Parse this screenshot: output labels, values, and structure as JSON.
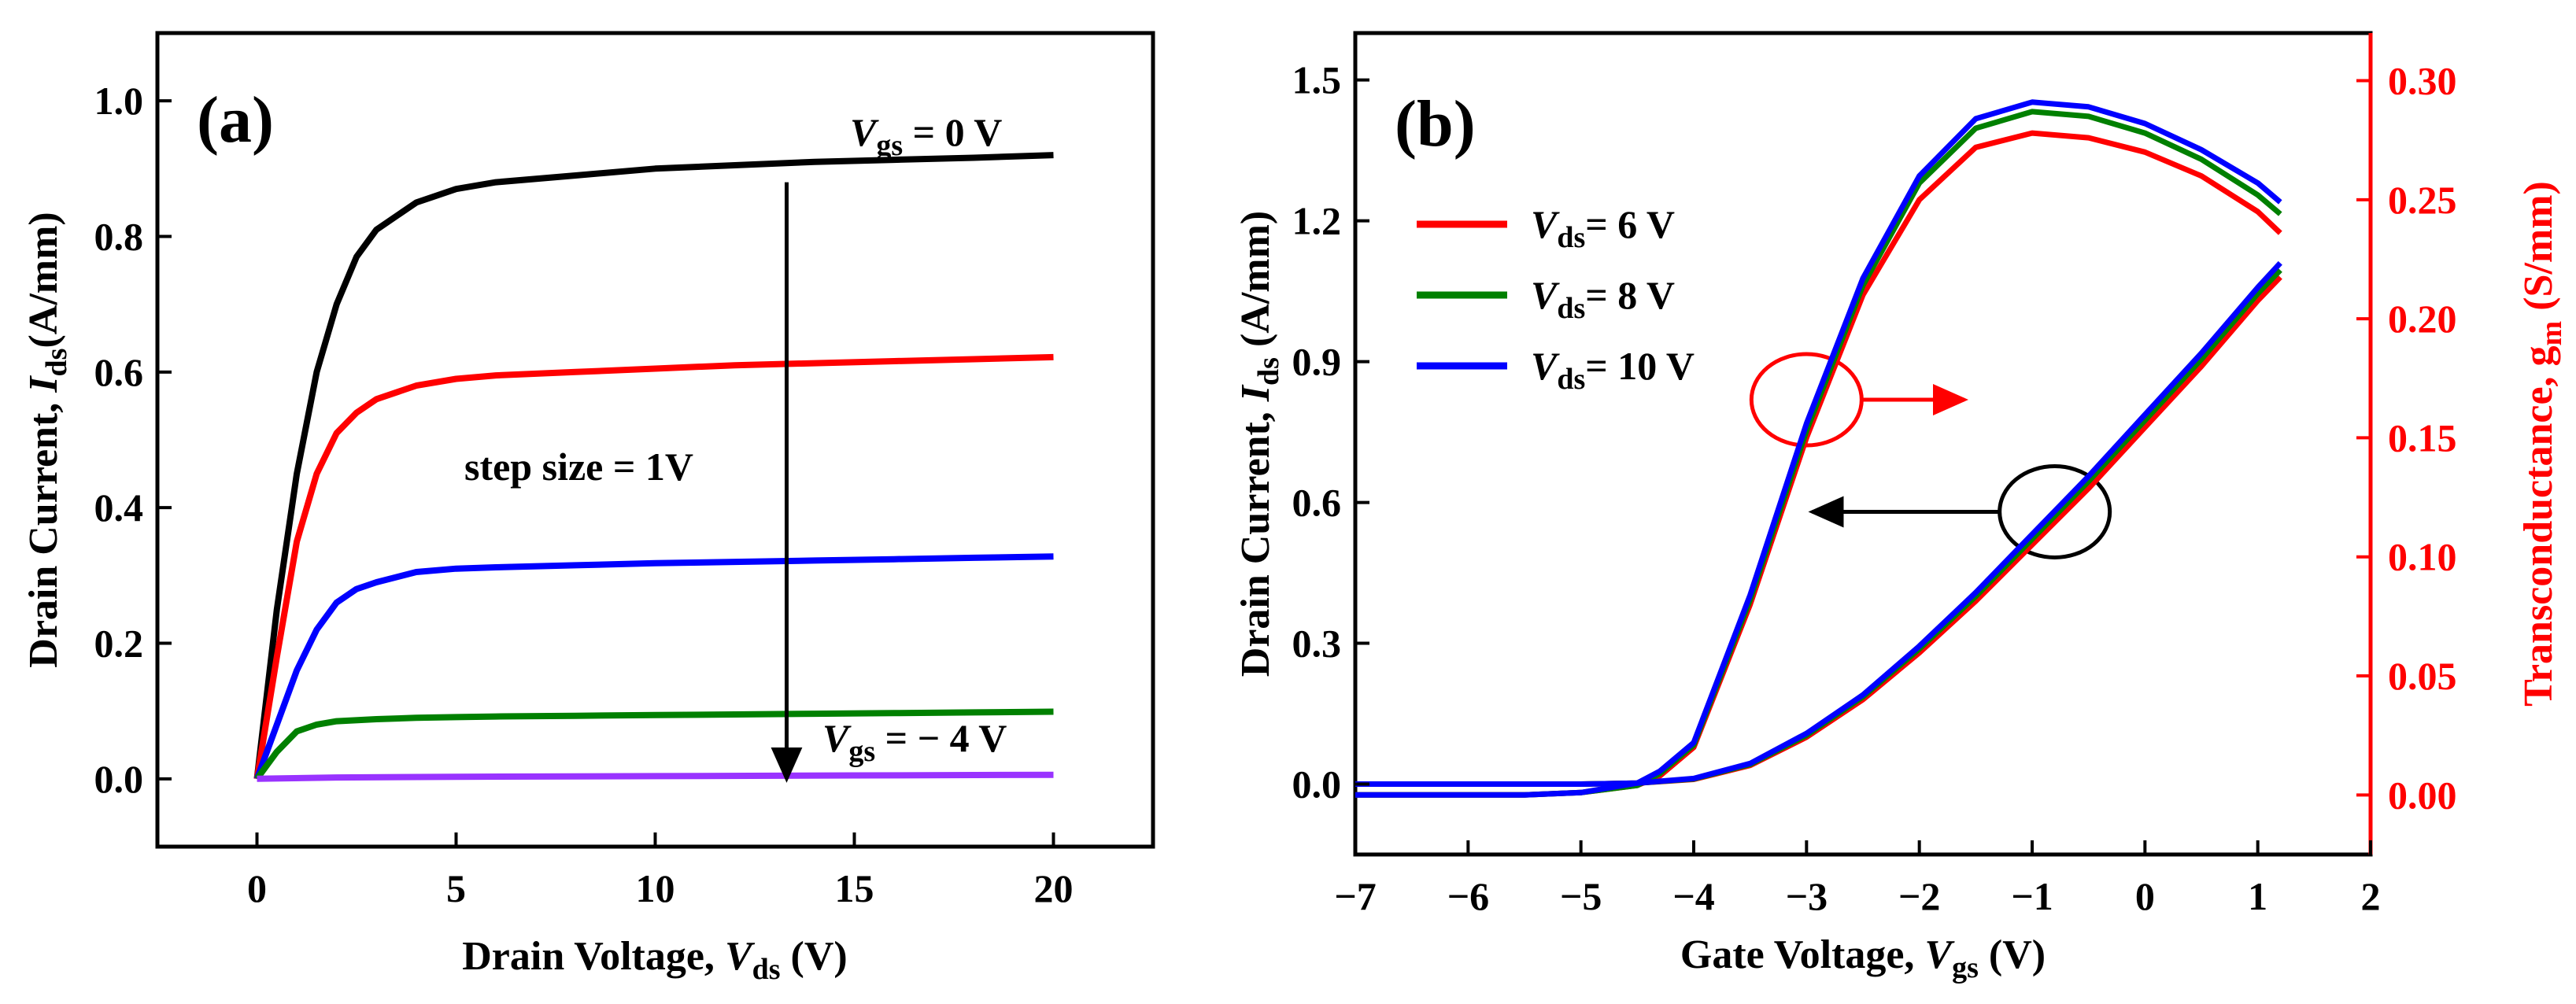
{
  "chart_data": [
    {
      "panel_label": "(a)",
      "type": "line",
      "xlabel": {
        "prefix": "Drain Voltage, ",
        "var": "V",
        "sub": "ds",
        "suffix": " (V)"
      },
      "ylabel": {
        "prefix": "Drain Current, ",
        "var": "I",
        "sub": "ds",
        "suffix": "(A/mm)"
      },
      "xlim": [
        -2.5,
        22.5
      ],
      "ylim": [
        -0.1,
        1.1
      ],
      "x_ticks": [
        0,
        5,
        10,
        15,
        20
      ],
      "x_tick_labels": [
        "0",
        "5",
        "10",
        "15",
        "20"
      ],
      "y_ticks": [
        0.0,
        0.2,
        0.4,
        0.6,
        0.8,
        1.0
      ],
      "y_tick_labels": [
        "0.0",
        "0.2",
        "0.4",
        "0.6",
        "0.8",
        "1.0"
      ],
      "grid": false,
      "annotations": {
        "top": {
          "var": "V",
          "sub": "gs",
          "suffix": " = 0 V"
        },
        "bottom": {
          "var": "V",
          "sub": "gs",
          "suffix": " = − 4 V"
        },
        "step": "step size = 1V"
      },
      "arrow": {
        "x": 13.3,
        "y_from": 0.88,
        "y_to": 0.0
      },
      "series": [
        {
          "color": "#000000",
          "x": [
            0,
            0.5,
            1,
            1.5,
            2,
            2.5,
            3,
            4,
            5,
            6,
            8,
            10,
            12,
            14,
            16,
            18,
            20
          ],
          "y": [
            0.0,
            0.25,
            0.45,
            0.6,
            0.7,
            0.77,
            0.81,
            0.85,
            0.87,
            0.88,
            0.89,
            0.9,
            0.905,
            0.91,
            0.913,
            0.916,
            0.92
          ]
        },
        {
          "color": "#ff0000",
          "x": [
            0,
            0.5,
            1,
            1.5,
            2,
            2.5,
            3,
            4,
            5,
            6,
            8,
            10,
            12,
            14,
            16,
            18,
            20
          ],
          "y": [
            0.0,
            0.18,
            0.35,
            0.45,
            0.51,
            0.54,
            0.56,
            0.58,
            0.59,
            0.595,
            0.6,
            0.605,
            0.61,
            0.613,
            0.616,
            0.619,
            0.622
          ]
        },
        {
          "color": "#0000ff",
          "x": [
            0,
            0.5,
            1,
            1.5,
            2,
            2.5,
            3,
            4,
            5,
            6,
            8,
            10,
            12,
            14,
            16,
            18,
            20
          ],
          "y": [
            0.0,
            0.08,
            0.16,
            0.22,
            0.26,
            0.28,
            0.29,
            0.305,
            0.31,
            0.312,
            0.315,
            0.318,
            0.32,
            0.322,
            0.324,
            0.326,
            0.328
          ]
        },
        {
          "color": "#008000",
          "x": [
            0,
            0.5,
            1,
            1.5,
            2,
            3,
            4,
            5,
            6,
            8,
            10,
            12,
            14,
            16,
            18,
            20
          ],
          "y": [
            0.0,
            0.04,
            0.07,
            0.08,
            0.085,
            0.088,
            0.09,
            0.091,
            0.092,
            0.093,
            0.094,
            0.095,
            0.096,
            0.097,
            0.098,
            0.099
          ]
        },
        {
          "color": "#9933ff",
          "x": [
            0,
            2,
            5,
            10,
            15,
            20
          ],
          "y": [
            0.0,
            0.002,
            0.003,
            0.004,
            0.005,
            0.006
          ]
        }
      ]
    },
    {
      "panel_label": "(b)",
      "type": "line",
      "xlabel": {
        "prefix": "Gate Voltage, ",
        "var": "V",
        "sub": "gs",
        "suffix": " (V)"
      },
      "ylabel": {
        "prefix": "Drain Current, ",
        "var": "I",
        "sub": "ds",
        "suffix": " (A/mm)"
      },
      "y2label": {
        "prefix": "Transconductance, g",
        "sub": "m",
        "suffix": " (S/mm)"
      },
      "xlim": [
        -7,
        2
      ],
      "ylim": [
        -0.15,
        1.6
      ],
      "y2lim": [
        -0.025,
        0.32
      ],
      "x_ticks": [
        -7,
        -6,
        -5,
        -4,
        -3,
        -2,
        -1,
        0,
        1,
        2
      ],
      "x_tick_labels": [
        "−7",
        "−6",
        "−5",
        "−4",
        "−3",
        "−2",
        "−1",
        "0",
        "1",
        "2"
      ],
      "y_ticks": [
        0.0,
        0.3,
        0.6,
        0.9,
        1.2,
        1.5
      ],
      "y_tick_labels": [
        "0.0",
        "0.3",
        "0.6",
        "0.9",
        "1.2",
        "1.5"
      ],
      "y2_ticks": [
        0.0,
        0.05,
        0.1,
        0.15,
        0.2,
        0.25,
        0.3
      ],
      "y2_tick_labels": [
        "0.00",
        "0.05",
        "0.10",
        "0.15",
        "0.20",
        "0.25",
        "0.30"
      ],
      "right_axis_color": "#ff0000",
      "grid": false,
      "legend_position": "upper-left",
      "series": [
        {
          "name": {
            "var": "V",
            "sub": "ds",
            "suffix": "= 6 V"
          },
          "color": "#ff0000",
          "ids_x": [
            -7,
            -5,
            -4.5,
            -4,
            -3.5,
            -3,
            -2.5,
            -2,
            -1.5,
            -1,
            -0.5,
            0,
            0.5,
            1,
            1.2
          ],
          "ids_y": [
            0,
            0,
            0.002,
            0.01,
            0.04,
            0.1,
            0.18,
            0.28,
            0.39,
            0.51,
            0.63,
            0.76,
            0.89,
            1.03,
            1.08
          ],
          "gm_x": [
            -7,
            -5.5,
            -5,
            -4.5,
            -4.3,
            -4,
            -3.5,
            -3,
            -2.5,
            -2,
            -1.5,
            -1,
            -0.5,
            0,
            0.5,
            1,
            1.2
          ],
          "gm_y": [
            0,
            0,
            0.001,
            0.004,
            0.008,
            0.02,
            0.08,
            0.15,
            0.21,
            0.25,
            0.272,
            0.278,
            0.276,
            0.27,
            0.26,
            0.245,
            0.236
          ]
        },
        {
          "name": {
            "var": "V",
            "sub": "ds",
            "suffix": "= 8 V"
          },
          "color": "#008000",
          "ids_x": [
            -7,
            -5,
            -4.5,
            -4,
            -3.5,
            -3,
            -2.5,
            -2,
            -1.5,
            -1,
            -0.5,
            0,
            0.5,
            1,
            1.2
          ],
          "ids_y": [
            0,
            0,
            0.002,
            0.011,
            0.042,
            0.104,
            0.186,
            0.288,
            0.4,
            0.522,
            0.645,
            0.775,
            0.905,
            1.045,
            1.095
          ],
          "gm_x": [
            -7,
            -5.5,
            -5,
            -4.5,
            -4.3,
            -4,
            -3.5,
            -3,
            -2.5,
            -2,
            -1.5,
            -1,
            -0.5,
            0,
            0.5,
            1,
            1.2
          ],
          "gm_y": [
            0,
            0,
            0.001,
            0.004,
            0.009,
            0.021,
            0.082,
            0.153,
            0.214,
            0.257,
            0.28,
            0.287,
            0.285,
            0.278,
            0.267,
            0.252,
            0.244
          ]
        },
        {
          "name": {
            "var": "V",
            "sub": "ds",
            "suffix": "= 10 V"
          },
          "color": "#0000ff",
          "ids_x": [
            -7,
            -5,
            -4.5,
            -4,
            -3.5,
            -3,
            -2.5,
            -2,
            -1.5,
            -1,
            -0.5,
            0,
            0.5,
            1,
            1.2
          ],
          "ids_y": [
            0,
            0,
            0.002,
            0.012,
            0.044,
            0.108,
            0.19,
            0.294,
            0.408,
            0.532,
            0.656,
            0.787,
            0.918,
            1.058,
            1.11
          ],
          "gm_x": [
            -7,
            -5.5,
            -5,
            -4.5,
            -4.3,
            -4,
            -3.5,
            -3,
            -2.5,
            -2,
            -1.5,
            -1,
            -0.5,
            0,
            0.5,
            1,
            1.2
          ],
          "gm_y": [
            0,
            0,
            0.001,
            0.005,
            0.01,
            0.022,
            0.084,
            0.156,
            0.217,
            0.26,
            0.284,
            0.291,
            0.289,
            0.282,
            0.271,
            0.257,
            0.249
          ]
        }
      ],
      "ellipses": [
        {
          "color": "#ff0000",
          "x": -3,
          "y2": 0.166,
          "arrow_to_x": -1.6,
          "arrow_dir": "right"
        },
        {
          "color": "#000000",
          "x": -0.8,
          "y": 0.58,
          "arrow_to_x": -2.95,
          "arrow_dir": "left"
        }
      ]
    }
  ]
}
